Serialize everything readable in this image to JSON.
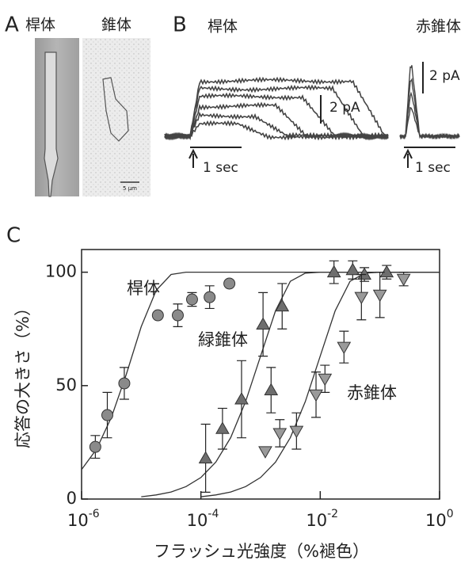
{
  "panel_a": {
    "label": "A",
    "rod": "桿体",
    "cone": "錐体",
    "scale": "5 µm"
  },
  "panel_b": {
    "label": "B",
    "rod": "桿体",
    "red_cone": "赤錐体",
    "rod_scale_y": "2 pA",
    "rod_scale_x": "1 sec",
    "cone_scale_y": "2 pA",
    "cone_scale_x": "1 sec"
  },
  "chart_data": {
    "type": "scatter",
    "label": "C",
    "xlabel": "フラッシュ光強度（%褪色）",
    "ylabel": "応答の大きさ（%）",
    "xscale": "log",
    "xlim": [
      1e-06,
      1
    ],
    "ylim": [
      0,
      110
    ],
    "xticks": [
      {
        "value": 1e-06,
        "label": "10",
        "exponent": "-6"
      },
      {
        "value": 0.0001,
        "label": "10",
        "exponent": "-4"
      },
      {
        "value": 0.01,
        "label": "10",
        "exponent": "-2"
      },
      {
        "value": 1,
        "label": "10",
        "exponent": "0"
      }
    ],
    "yticks": [
      0,
      50,
      100
    ],
    "series": [
      {
        "name": "桿体",
        "marker": "circle",
        "color": "#8a8a8a",
        "x": [
          1.7e-06,
          2.7e-06,
          5.2e-06,
          1.9e-05,
          4.1e-05,
          7.1e-05,
          0.00014,
          0.0003
        ],
        "values": [
          23,
          37,
          51,
          81,
          81,
          88,
          89,
          95
        ],
        "errors": [
          5,
          10,
          7,
          null,
          5,
          3,
          5,
          null
        ]
      },
      {
        "name": "緑錐体",
        "marker": "triangle-up",
        "color": "#6e6e6e",
        "x": [
          0.00012,
          0.00023,
          0.00048,
          0.0011,
          0.0015,
          0.0023,
          0.017,
          0.035,
          0.055,
          0.13
        ],
        "values": [
          18,
          31,
          44,
          77,
          48,
          85,
          100,
          101,
          99,
          100
        ],
        "errors": [
          15,
          9,
          17,
          14,
          10,
          10,
          5,
          4,
          3,
          3
        ]
      },
      {
        "name": "赤錐体",
        "marker": "triangle-down",
        "color": "#9a9a9a",
        "x": [
          0.0012,
          0.0021,
          0.004,
          0.0085,
          0.012,
          0.025,
          0.049,
          0.1,
          0.25
        ],
        "values": [
          21,
          29,
          30,
          46,
          53,
          67,
          89,
          90,
          97
        ],
        "errors": [
          null,
          6,
          8,
          10,
          6,
          7,
          10,
          10,
          3
        ]
      }
    ],
    "curves": [
      {
        "color": "#333333",
        "x": [
          1e-06,
          1.78e-06,
          3.16e-06,
          5.62e-06,
          1e-05,
          1.78e-05,
          3.16e-05,
          5.62e-05,
          0.0001,
          0.001,
          1
        ],
        "values": [
          13,
          22,
          36,
          55,
          76,
          92,
          99,
          100,
          100,
          100,
          100
        ]
      },
      {
        "color": "#333333",
        "x": [
          1e-05,
          1.78e-05,
          3.16e-05,
          5.62e-05,
          0.0001,
          0.000178,
          0.000316,
          0.000562,
          0.001,
          0.00178,
          0.00316,
          0.00562,
          0.01,
          1
        ],
        "values": [
          1,
          1.8,
          3.1,
          5.5,
          9.5,
          16.3,
          27.1,
          43,
          63,
          83,
          96,
          99.6,
          100,
          100
        ]
      },
      {
        "color": "#333333",
        "x": [
          0.0001,
          0.000178,
          0.000316,
          0.000562,
          0.001,
          0.00178,
          0.00316,
          0.00562,
          0.01,
          0.0178,
          0.0316,
          0.0562,
          0.1,
          1
        ],
        "values": [
          1,
          1.8,
          3.1,
          5.5,
          9.5,
          16.3,
          27.1,
          43,
          63,
          83,
          96,
          99.6,
          100,
          100
        ]
      }
    ]
  }
}
